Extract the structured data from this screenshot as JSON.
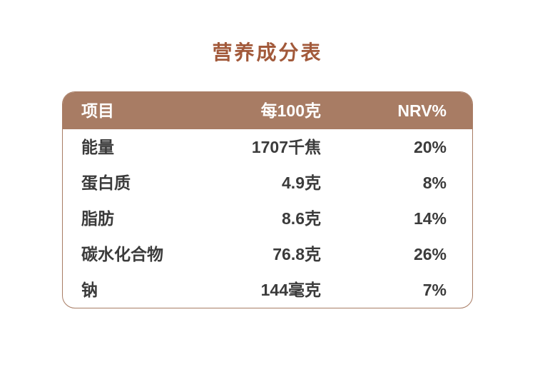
{
  "page": {
    "title": "营养成分表"
  },
  "colors": {
    "title_text": "#a2593a",
    "header_background": "#a87c64",
    "header_text": "#ffffff",
    "body_text": "#3b3b3b",
    "table_border": "#a87c64",
    "page_background": "#ffffff"
  },
  "table": {
    "headers": [
      "项目",
      "每100克",
      "NRV%"
    ],
    "rows": [
      {
        "item": "能量",
        "per100g": "1707千焦",
        "nrv": "20%"
      },
      {
        "item": "蛋白质",
        "per100g": "4.9克",
        "nrv": "8%"
      },
      {
        "item": "脂肪",
        "per100g": "8.6克",
        "nrv": "14%"
      },
      {
        "item": "碳水化合物",
        "per100g": "76.8克",
        "nrv": "26%"
      },
      {
        "item": "钠",
        "per100g": "144毫克",
        "nrv": "7%"
      }
    ]
  }
}
